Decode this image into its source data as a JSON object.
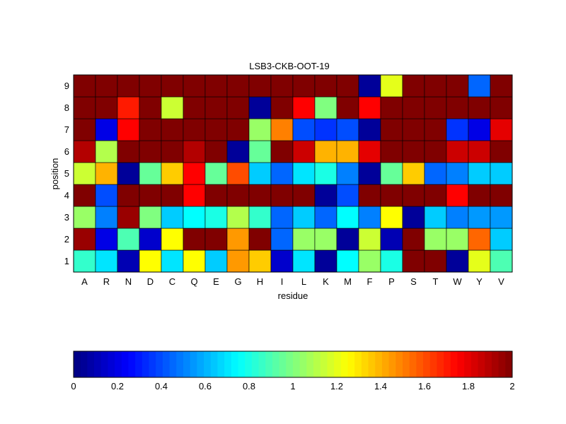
{
  "chart_data": {
    "type": "heatmap",
    "title": "LSB3-CKB-OOT-19",
    "xlabel": "residue",
    "ylabel": "position",
    "x_categories": [
      "A",
      "R",
      "N",
      "D",
      "C",
      "Q",
      "E",
      "G",
      "H",
      "I",
      "L",
      "K",
      "M",
      "F",
      "P",
      "S",
      "T",
      "W",
      "Y",
      "V"
    ],
    "y_categories": [
      "1",
      "2",
      "3",
      "4",
      "5",
      "6",
      "7",
      "8",
      "9"
    ],
    "colormap": "jet",
    "clim": [
      0,
      2
    ],
    "grid": true,
    "colorbar": {
      "placement": "bottom",
      "ticks": [
        "0",
        "0.2",
        "0.4",
        "0.6",
        "0.8",
        "1",
        "1.2",
        "1.4",
        "1.6",
        "1.8",
        "2"
      ]
    },
    "values": [
      [
        0.85,
        0.7,
        0.1,
        1.25,
        0.7,
        1.25,
        0.65,
        1.45,
        1.35,
        0.15,
        0.7,
        0.05,
        0.75,
        1.05,
        0.8,
        2.0,
        2.0,
        0.05,
        1.2,
        0.9
      ],
      [
        1.95,
        0.2,
        0.9,
        0.15,
        1.25,
        2.0,
        2.0,
        1.45,
        2.0,
        0.45,
        1.05,
        1.05,
        0.05,
        1.15,
        0.1,
        2.0,
        1.05,
        1.05,
        1.55,
        0.65
      ],
      [
        1.05,
        0.5,
        1.95,
        1.0,
        0.65,
        0.75,
        0.8,
        1.1,
        0.85,
        0.45,
        0.65,
        0.45,
        0.75,
        0.5,
        1.25,
        0.05,
        0.65,
        0.5,
        0.55,
        0.55
      ],
      [
        2.0,
        0.4,
        2.0,
        2.0,
        2.0,
        1.75,
        2.0,
        2.0,
        2.0,
        2.0,
        2.0,
        0.05,
        0.4,
        2.0,
        2.0,
        2.0,
        2.0,
        1.75,
        2.0,
        2.0
      ],
      [
        1.15,
        1.4,
        0.05,
        0.95,
        1.35,
        1.75,
        0.95,
        1.6,
        0.65,
        0.45,
        0.7,
        0.8,
        0.5,
        0.05,
        0.95,
        1.35,
        0.45,
        0.5,
        0.65,
        0.65
      ],
      [
        1.9,
        1.1,
        2.0,
        2.0,
        2.0,
        1.9,
        2.0,
        0.05,
        0.95,
        2.0,
        1.85,
        1.4,
        1.4,
        1.8,
        2.0,
        2.0,
        2.0,
        1.85,
        1.85,
        2.0
      ],
      [
        2.0,
        0.2,
        1.75,
        2.0,
        2.0,
        2.0,
        2.0,
        2.0,
        1.05,
        1.5,
        0.4,
        0.35,
        0.4,
        0.05,
        2.0,
        2.0,
        2.0,
        0.35,
        0.2,
        1.8
      ],
      [
        2.0,
        2.0,
        1.7,
        2.0,
        1.15,
        2.0,
        2.0,
        2.0,
        0.05,
        2.0,
        1.75,
        1.0,
        2.0,
        1.75,
        2.0,
        2.0,
        2.0,
        2.0,
        2.0,
        2.0
      ],
      [
        2.0,
        2.0,
        2.0,
        2.0,
        2.0,
        2.0,
        2.0,
        2.0,
        2.0,
        2.0,
        2.0,
        2.0,
        2.0,
        0.05,
        1.2,
        2.0,
        2.0,
        2.0,
        0.45,
        2.0
      ]
    ]
  }
}
